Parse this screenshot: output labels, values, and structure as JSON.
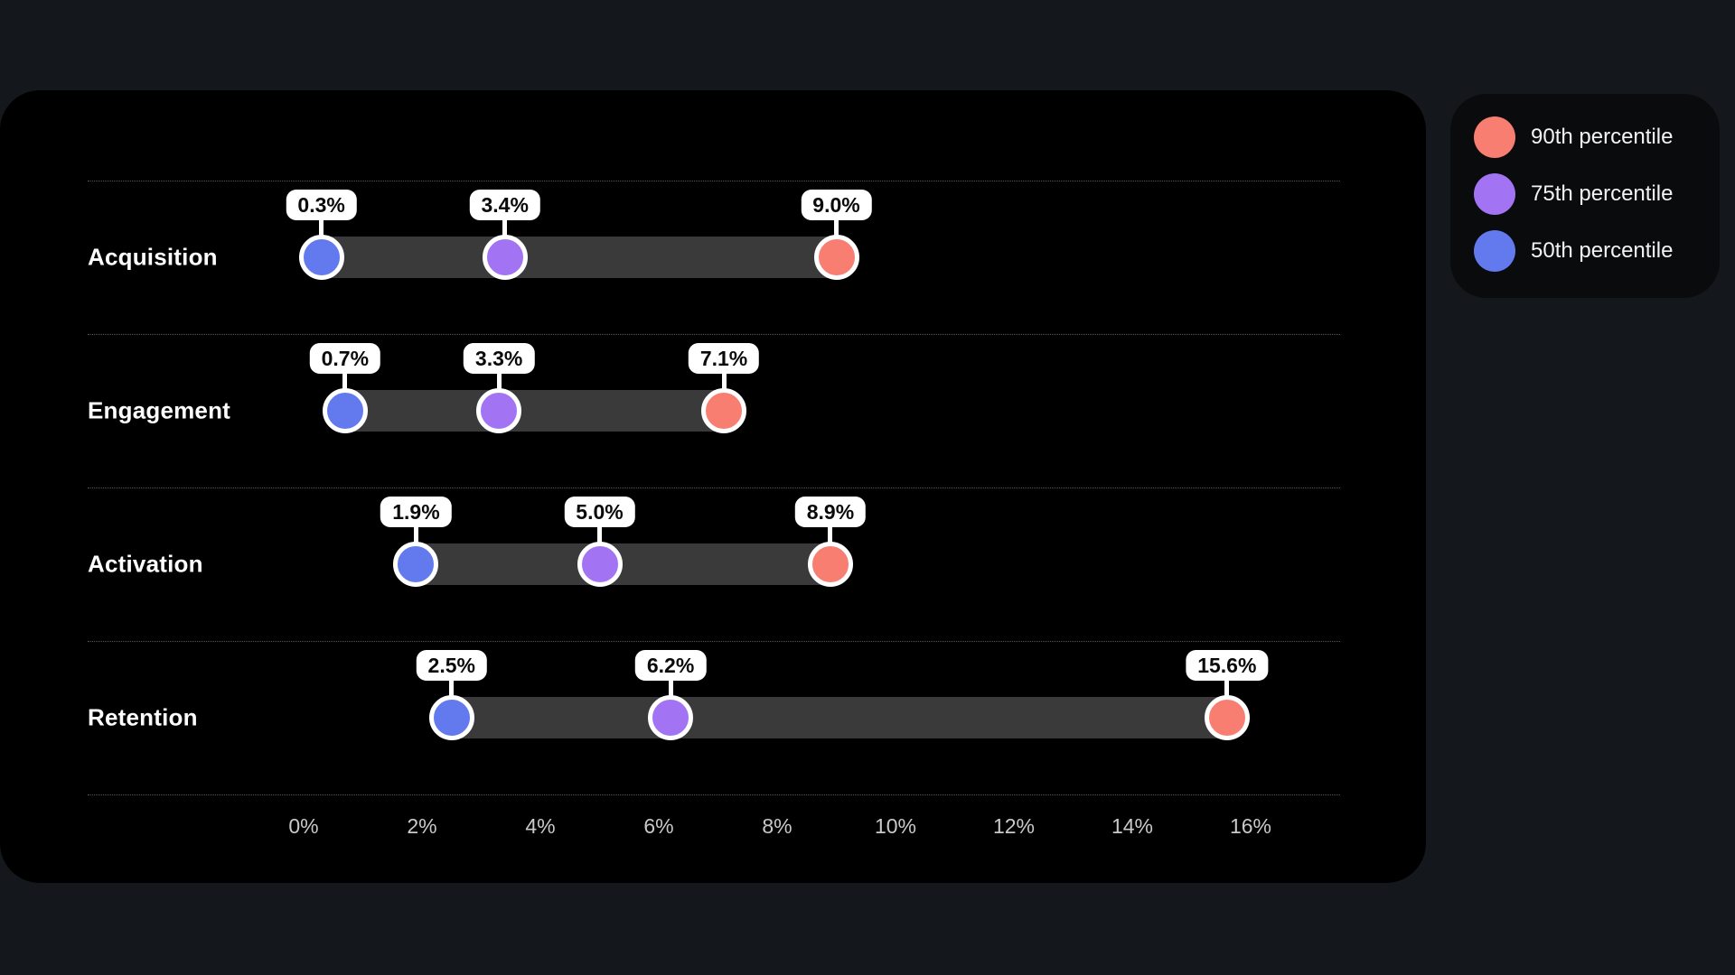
{
  "page": {
    "background_color": "#14171B",
    "card_color": "#000000"
  },
  "legend": {
    "background_color": "#0A0B0D",
    "items": [
      {
        "label": "90th percentile",
        "color": "#F87E72",
        "swatch": "circle-icon"
      },
      {
        "label": "75th percentile",
        "color": "#A273F3",
        "swatch": "circle-icon"
      },
      {
        "label": "50th percentile",
        "color": "#637AEF",
        "swatch": "circle-icon"
      }
    ]
  },
  "chart_data": {
    "type": "scatter",
    "subtype": "dumbbell-percentile-range",
    "title": "",
    "categories": [
      "Acquisition",
      "Engagement",
      "Activation",
      "Retention"
    ],
    "series": [
      {
        "name": "50th percentile",
        "color": "#637AEF",
        "values": [
          0.3,
          0.7,
          1.9,
          2.5
        ],
        "labels": [
          "0.3%",
          "0.7%",
          "1.9%",
          "2.5%"
        ]
      },
      {
        "name": "75th percentile",
        "color": "#A273F3",
        "values": [
          3.4,
          3.3,
          5.0,
          6.2
        ],
        "labels": [
          "3.4%",
          "3.3%",
          "5.0%",
          "6.2%"
        ]
      },
      {
        "name": "90th percentile",
        "color": "#F87E72",
        "values": [
          9.0,
          7.1,
          8.9,
          15.6
        ],
        "labels": [
          "9.0%",
          "7.1%",
          "8.9%",
          "15.6%"
        ]
      }
    ],
    "range_bar": {
      "from_series": "50th percentile",
      "to_series": "90th percentile",
      "color": "#3A3A3A"
    },
    "x_axis": {
      "min": 0,
      "max": 16,
      "ticks": [
        0,
        2,
        4,
        6,
        8,
        10,
        12,
        14,
        16
      ],
      "tick_labels": [
        "0%",
        "2%",
        "4%",
        "6%",
        "8%",
        "10%",
        "12%",
        "14%",
        "16%"
      ]
    },
    "grid": "dotted-row-separators",
    "legend_position": "top-right-outside",
    "value_labels_visible": true
  }
}
